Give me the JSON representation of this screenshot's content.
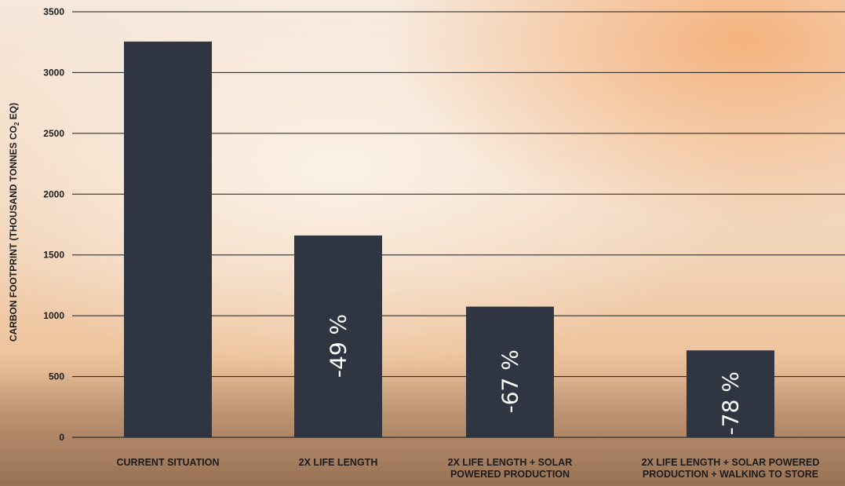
{
  "chart_data": {
    "type": "bar",
    "title": "",
    "ylabel": "CARBON FOOTPRINT (THOUSAND TONNES CO",
    "ylabel_subscript": "2",
    "ylabel_suffix": " EQ)",
    "xlabel": "",
    "ylim": [
      0,
      3500
    ],
    "yticks": [
      0,
      500,
      1000,
      1500,
      2000,
      2500,
      3000,
      3500
    ],
    "grid": true,
    "categories": [
      [
        "CURRENT SITUATION"
      ],
      [
        "2X LIFE LENGTH"
      ],
      [
        "2X LIFE LENGTH + SOLAR",
        "POWERED PRODUCTION"
      ],
      [
        "2X LIFE LENGTH + SOLAR POWERED",
        "PRODUCTION + WALKING TO STORE"
      ]
    ],
    "values": [
      3255,
      1660,
      1075,
      715
    ],
    "bar_labels": [
      "",
      "-49 %",
      "-67 %",
      "-78 %"
    ],
    "colors": {
      "bar": "#2f3541",
      "grid": "#1a1a1a",
      "bar_label": "#ffffff"
    }
  }
}
